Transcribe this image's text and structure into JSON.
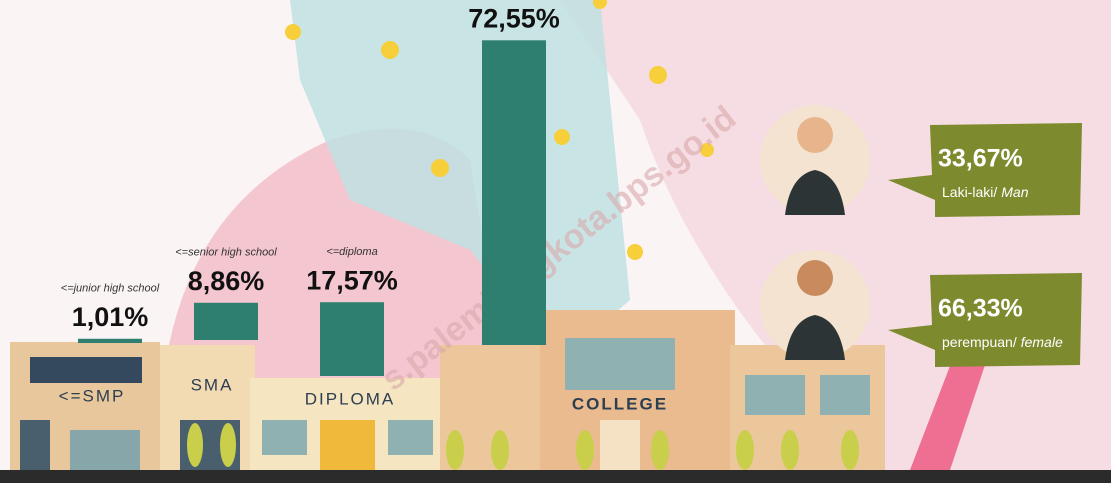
{
  "chart_data": {
    "type": "bar",
    "categories": [
      "<=junior high school",
      "<=senior high school",
      "<=diploma",
      null
    ],
    "values": [
      1.01,
      8.86,
      17.57,
      72.55
    ],
    "value_labels": [
      "1,01%",
      "8,86%",
      "17,57%",
      "72,55%"
    ],
    "color": "#2f7f71"
  },
  "buildings": [
    "<=SMP",
    "SMA",
    "DIPLOMA",
    "COLLEGE"
  ],
  "gender": {
    "values": [
      33.67,
      66.33
    ],
    "value_labels": [
      "33,67%",
      "66,33%"
    ],
    "labels": [
      [
        "Laki-laki/",
        "Man"
      ],
      [
        "perempuan/",
        "female"
      ]
    ]
  },
  "watermark": "s.palembangkota.bps.go.id"
}
